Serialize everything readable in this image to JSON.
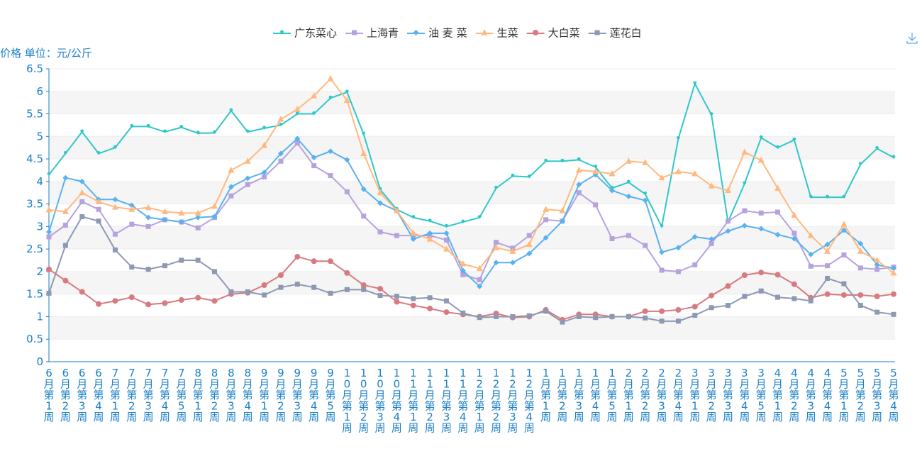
{
  "chart_data": {
    "type": "line",
    "y_axis_label": "价格 单位：元/公斤",
    "categories": [
      "6月第1周",
      "6月第2周",
      "6月第3周",
      "6月第4周",
      "7月第1周",
      "7月第2周",
      "7月第3周",
      "7月第4周",
      "7月第5周",
      "8月第1周",
      "8月第2周",
      "8月第3周",
      "8月第4周",
      "9月第1周",
      "9月第2周",
      "9月第3周",
      "9月第4周",
      "9月第5周",
      "10月第1周",
      "10月第2周",
      "10月第3周",
      "10月第4周",
      "11月第1周",
      "11月第2周",
      "11月第3周",
      "11月第4周",
      "12月第1周",
      "12月第2周",
      "12月第3周",
      "12月第4周",
      "1月第1周",
      "1月第2周",
      "1月第3周",
      "1月第4周",
      "1月第5周",
      "2月第1周",
      "2月第2周",
      "2月第3周",
      "2月第4周",
      "3月第1周",
      "3月第2周",
      "3月第3周",
      "3月第4周",
      "3月第5周",
      "4月第1周",
      "4月第2周",
      "4月第3周",
      "4月第4周",
      "5月第1周",
      "5月第2周",
      "5月第3周",
      "5月第4周"
    ],
    "series": [
      {
        "name": "广东菜心",
        "color": "#2ec7c9",
        "marker": "pin",
        "values": [
          4.15,
          4.62,
          5.1,
          4.62,
          4.75,
          5.22,
          5.22,
          5.1,
          5.2,
          5.07,
          5.08,
          5.57,
          5.1,
          5.18,
          5.25,
          5.5,
          5.5,
          5.85,
          5.98,
          5.05,
          3.82,
          3.38,
          3.2,
          3.12,
          3.0,
          3.1,
          3.2,
          3.85,
          4.12,
          4.1,
          4.45,
          4.45,
          4.48,
          4.32,
          3.85,
          3.98,
          3.72,
          3.0,
          4.95,
          6.17,
          5.48,
          3.1,
          3.95,
          4.97,
          4.75,
          4.92,
          3.65,
          3.65,
          3.65,
          4.38,
          4.73,
          4.53
        ]
      },
      {
        "name": "上海青",
        "color": "#b6a2de",
        "marker": "square",
        "values": [
          2.77,
          3.03,
          3.55,
          3.38,
          2.83,
          3.05,
          3.0,
          3.15,
          3.1,
          2.97,
          3.2,
          3.68,
          3.93,
          4.1,
          4.45,
          4.85,
          4.35,
          4.13,
          3.77,
          3.23,
          2.88,
          2.8,
          2.8,
          2.8,
          2.7,
          1.93,
          1.82,
          2.65,
          2.52,
          2.8,
          3.15,
          3.12,
          3.75,
          3.48,
          2.73,
          2.8,
          2.58,
          2.03,
          2.0,
          2.15,
          2.62,
          3.12,
          3.35,
          3.3,
          3.32,
          2.85,
          2.12,
          2.13,
          2.37,
          2.08,
          2.05,
          2.1
        ]
      },
      {
        "name": "油 麦 菜",
        "color": "#5ab1ef",
        "marker": "diamond",
        "values": [
          2.88,
          4.08,
          4.0,
          3.6,
          3.6,
          3.47,
          3.2,
          3.15,
          3.1,
          3.2,
          3.22,
          3.88,
          4.07,
          4.2,
          4.62,
          4.95,
          4.53,
          4.67,
          4.48,
          3.83,
          3.52,
          3.35,
          2.72,
          2.85,
          2.85,
          2.02,
          1.67,
          2.2,
          2.2,
          2.4,
          2.75,
          3.12,
          3.93,
          4.15,
          3.8,
          3.67,
          3.58,
          2.43,
          2.53,
          2.77,
          2.72,
          2.9,
          3.02,
          2.95,
          2.82,
          2.73,
          2.38,
          2.6,
          2.92,
          2.62,
          2.15,
          2.07
        ]
      },
      {
        "name": "生菜",
        "color": "#ffb980",
        "marker": "triangle",
        "values": [
          3.37,
          3.33,
          3.75,
          3.55,
          3.43,
          3.38,
          3.42,
          3.33,
          3.3,
          3.3,
          3.45,
          4.25,
          4.45,
          4.8,
          5.38,
          5.6,
          5.9,
          6.28,
          5.8,
          4.62,
          3.75,
          3.35,
          2.85,
          2.72,
          2.5,
          2.17,
          2.07,
          2.53,
          2.45,
          2.6,
          3.38,
          3.35,
          4.25,
          4.22,
          4.17,
          4.45,
          4.42,
          4.08,
          4.22,
          4.17,
          3.9,
          3.8,
          4.65,
          4.47,
          3.85,
          3.25,
          2.8,
          2.45,
          3.05,
          2.45,
          2.25,
          1.97
        ]
      },
      {
        "name": "大白菜",
        "color": "#d87a80",
        "marker": "circle",
        "values": [
          2.05,
          1.8,
          1.55,
          1.28,
          1.35,
          1.43,
          1.27,
          1.3,
          1.37,
          1.42,
          1.35,
          1.5,
          1.53,
          1.7,
          1.92,
          2.33,
          2.23,
          2.23,
          1.97,
          1.7,
          1.62,
          1.33,
          1.25,
          1.18,
          1.1,
          1.05,
          1.0,
          1.07,
          0.98,
          1.0,
          1.15,
          0.93,
          1.05,
          1.05,
          1.0,
          1.0,
          1.12,
          1.12,
          1.15,
          1.22,
          1.47,
          1.68,
          1.92,
          1.98,
          1.93,
          1.72,
          1.42,
          1.5,
          1.48,
          1.48,
          1.45,
          1.5
        ]
      },
      {
        "name": "莲花白",
        "color": "#8d98b3",
        "marker": "square",
        "values": [
          1.52,
          2.58,
          3.22,
          3.12,
          2.48,
          2.1,
          2.05,
          2.13,
          2.25,
          2.25,
          2.0,
          1.55,
          1.55,
          1.48,
          1.65,
          1.72,
          1.65,
          1.52,
          1.6,
          1.6,
          1.47,
          1.45,
          1.4,
          1.42,
          1.35,
          1.08,
          0.98,
          1.0,
          1.0,
          1.02,
          1.12,
          0.88,
          1.0,
          0.98,
          1.0,
          1.0,
          0.97,
          0.9,
          0.9,
          1.03,
          1.2,
          1.25,
          1.45,
          1.57,
          1.43,
          1.4,
          1.35,
          1.85,
          1.73,
          1.25,
          1.1,
          1.05
        ]
      }
    ],
    "ylim": [
      0,
      6.5
    ],
    "yticks": [
      0,
      0.5,
      1,
      1.5,
      2,
      2.5,
      3,
      3.5,
      4,
      4.5,
      5,
      5.5,
      6,
      6.5
    ],
    "grid": true,
    "legend": "top"
  }
}
